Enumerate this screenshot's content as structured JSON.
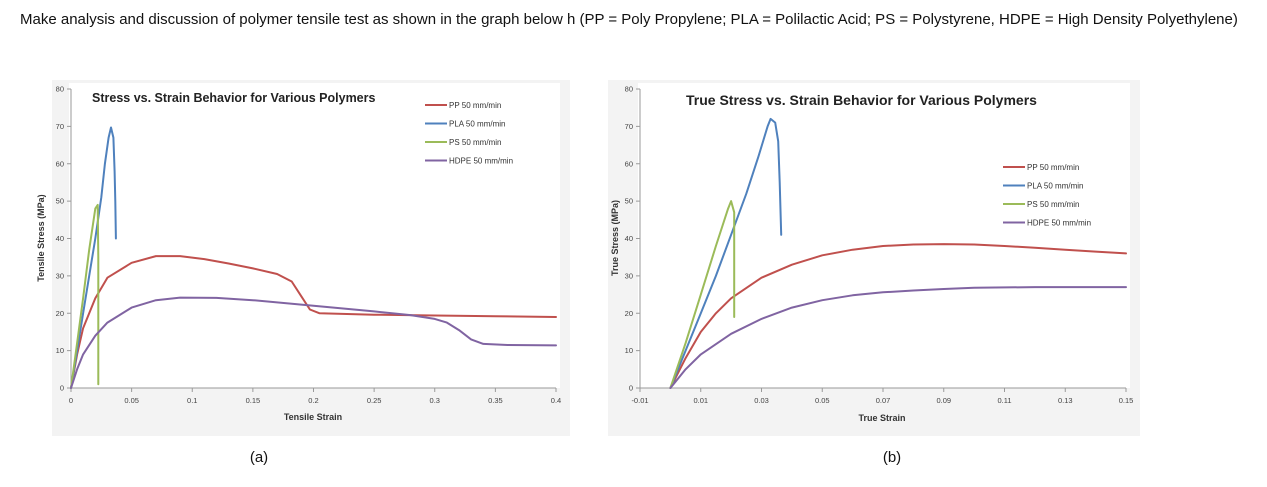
{
  "question": {
    "text": "Make analysis and discussion of polymer tensile test as shown in the graph below h (PP = Poly Propylene; PLA = Polilactic Acid; PS = Polystyrene, HDPE = High Density Polyethylene)"
  },
  "captions": {
    "a": "(a)",
    "b": "(b)"
  },
  "colors": {
    "pp": "#c0504d",
    "pla": "#4f81bd",
    "ps": "#9bbb59",
    "hdpe": "#8064a2",
    "axis": "#9a9a9a"
  },
  "chart_data": [
    {
      "type": "line",
      "title": "Stress vs. Strain Behavior for Various Polymers",
      "xlabel": "Tensile Strain",
      "ylabel": "Tensile Stress (MPa)",
      "xlim": [
        0,
        0.4
      ],
      "ylim": [
        0,
        80
      ],
      "xticks": [
        0,
        0.05,
        0.1,
        0.15,
        0.2,
        0.25,
        0.3,
        0.35,
        0.4
      ],
      "xtick_labels": [
        "0",
        "0.05",
        "0.1",
        "0.15",
        "0.2",
        "0.25",
        "0.3",
        "0.35",
        "0.4"
      ],
      "yticks": [
        0,
        10,
        20,
        30,
        40,
        50,
        60,
        70,
        80
      ],
      "ytick_labels": [
        "0",
        "10",
        "20",
        "30",
        "40",
        "50",
        "60",
        "70",
        "80"
      ],
      "grid": false,
      "legend_position": "top-right",
      "series": [
        {
          "name": "PP 50 mm/min",
          "color": "#c0504d",
          "points": [
            [
              0,
              0
            ],
            [
              0.005,
              9
            ],
            [
              0.01,
              16
            ],
            [
              0.02,
              24
            ],
            [
              0.03,
              29.5
            ],
            [
              0.05,
              33.5
            ],
            [
              0.07,
              35.3
            ],
            [
              0.09,
              35.3
            ],
            [
              0.11,
              34.5
            ],
            [
              0.13,
              33.3
            ],
            [
              0.15,
              32
            ],
            [
              0.17,
              30.5
            ],
            [
              0.182,
              28.5
            ],
            [
              0.19,
              24.5
            ],
            [
              0.197,
              21
            ],
            [
              0.205,
              20
            ],
            [
              0.25,
              19.6
            ],
            [
              0.3,
              19.4
            ],
            [
              0.35,
              19.2
            ],
            [
              0.4,
              19
            ]
          ]
        },
        {
          "name": "PLA 50 mm/min",
          "color": "#4f81bd",
          "points": [
            [
              0,
              0
            ],
            [
              0.005,
              10
            ],
            [
              0.01,
              20
            ],
            [
              0.015,
              30
            ],
            [
              0.02,
              40
            ],
            [
              0.025,
              51
            ],
            [
              0.028,
              60
            ],
            [
              0.031,
              67
            ],
            [
              0.033,
              69.7
            ],
            [
              0.035,
              67
            ],
            [
              0.036,
              58
            ],
            [
              0.0365,
              50
            ],
            [
              0.037,
              40
            ]
          ]
        },
        {
          "name": "PS 50 mm/min",
          "color": "#9bbb59",
          "points": [
            [
              0,
              0
            ],
            [
              0.005,
              12
            ],
            [
              0.01,
              24
            ],
            [
              0.015,
              37
            ],
            [
              0.02,
              48
            ],
            [
              0.022,
              49
            ],
            [
              0.0225,
              35
            ],
            [
              0.0225,
              1
            ]
          ]
        },
        {
          "name": "HDPE 50 mm/min",
          "color": "#8064a2",
          "points": [
            [
              0,
              0
            ],
            [
              0.005,
              5
            ],
            [
              0.01,
              9
            ],
            [
              0.02,
              14
            ],
            [
              0.03,
              17.5
            ],
            [
              0.05,
              21.5
            ],
            [
              0.07,
              23.5
            ],
            [
              0.09,
              24.2
            ],
            [
              0.12,
              24.1
            ],
            [
              0.15,
              23.5
            ],
            [
              0.2,
              22
            ],
            [
              0.25,
              20.5
            ],
            [
              0.28,
              19.5
            ],
            [
              0.3,
              18.5
            ],
            [
              0.31,
              17.5
            ],
            [
              0.32,
              15.5
            ],
            [
              0.33,
              13
            ],
            [
              0.34,
              11.8
            ],
            [
              0.36,
              11.5
            ],
            [
              0.4,
              11.4
            ]
          ]
        }
      ]
    },
    {
      "type": "line",
      "title": "True Stress vs. Strain Behavior for Various Polymers",
      "xlabel": "True Strain",
      "ylabel": "True Stress (MPa)",
      "xlim": [
        -0.01,
        0.15
      ],
      "ylim": [
        0,
        80
      ],
      "xticks": [
        -0.01,
        0.01,
        0.03,
        0.05,
        0.07,
        0.09,
        0.11,
        0.13,
        0.15
      ],
      "xtick_labels": [
        "-0.01",
        "0.01",
        "0.03",
        "0.05",
        "0.07",
        "0.09",
        "0.11",
        "0.13",
        "0.15"
      ],
      "yticks": [
        0,
        10,
        20,
        30,
        40,
        50,
        60,
        70,
        80
      ],
      "ytick_labels": [
        "0",
        "10",
        "20",
        "30",
        "40",
        "50",
        "60",
        "70",
        "80"
      ],
      "grid": false,
      "legend_position": "right",
      "series": [
        {
          "name": "PP 50 mm/min",
          "color": "#c0504d",
          "points": [
            [
              0,
              0
            ],
            [
              0.005,
              8
            ],
            [
              0.01,
              15
            ],
            [
              0.015,
              20
            ],
            [
              0.02,
              24
            ],
            [
              0.03,
              29.5
            ],
            [
              0.04,
              33
            ],
            [
              0.05,
              35.5
            ],
            [
              0.06,
              37
            ],
            [
              0.07,
              38
            ],
            [
              0.08,
              38.4
            ],
            [
              0.09,
              38.5
            ],
            [
              0.1,
              38.4
            ],
            [
              0.11,
              38
            ],
            [
              0.12,
              37.5
            ],
            [
              0.13,
              37
            ],
            [
              0.14,
              36.5
            ],
            [
              0.15,
              36
            ]
          ]
        },
        {
          "name": "PLA 50 mm/min",
          "color": "#4f81bd",
          "points": [
            [
              0,
              0
            ],
            [
              0.005,
              10
            ],
            [
              0.01,
              20
            ],
            [
              0.015,
              30
            ],
            [
              0.02,
              41
            ],
            [
              0.025,
              52
            ],
            [
              0.029,
              62
            ],
            [
              0.032,
              70
            ],
            [
              0.033,
              72
            ],
            [
              0.0345,
              71
            ],
            [
              0.0355,
              66
            ],
            [
              0.036,
              55
            ],
            [
              0.0365,
              41
            ]
          ]
        },
        {
          "name": "PS 50 mm/min",
          "color": "#9bbb59",
          "points": [
            [
              0,
              0
            ],
            [
              0.005,
              12
            ],
            [
              0.01,
              25
            ],
            [
              0.015,
              38
            ],
            [
              0.019,
              48
            ],
            [
              0.02,
              50
            ],
            [
              0.021,
              47
            ],
            [
              0.021,
              19
            ]
          ]
        },
        {
          "name": "HDPE 50 mm/min",
          "color": "#8064a2",
          "points": [
            [
              0,
              0
            ],
            [
              0.005,
              5
            ],
            [
              0.01,
              9
            ],
            [
              0.02,
              14.5
            ],
            [
              0.03,
              18.5
            ],
            [
              0.04,
              21.5
            ],
            [
              0.05,
              23.5
            ],
            [
              0.06,
              24.8
            ],
            [
              0.07,
              25.6
            ],
            [
              0.08,
              26.1
            ],
            [
              0.09,
              26.5
            ],
            [
              0.1,
              26.8
            ],
            [
              0.12,
              27
            ],
            [
              0.15,
              27
            ]
          ]
        }
      ]
    }
  ]
}
